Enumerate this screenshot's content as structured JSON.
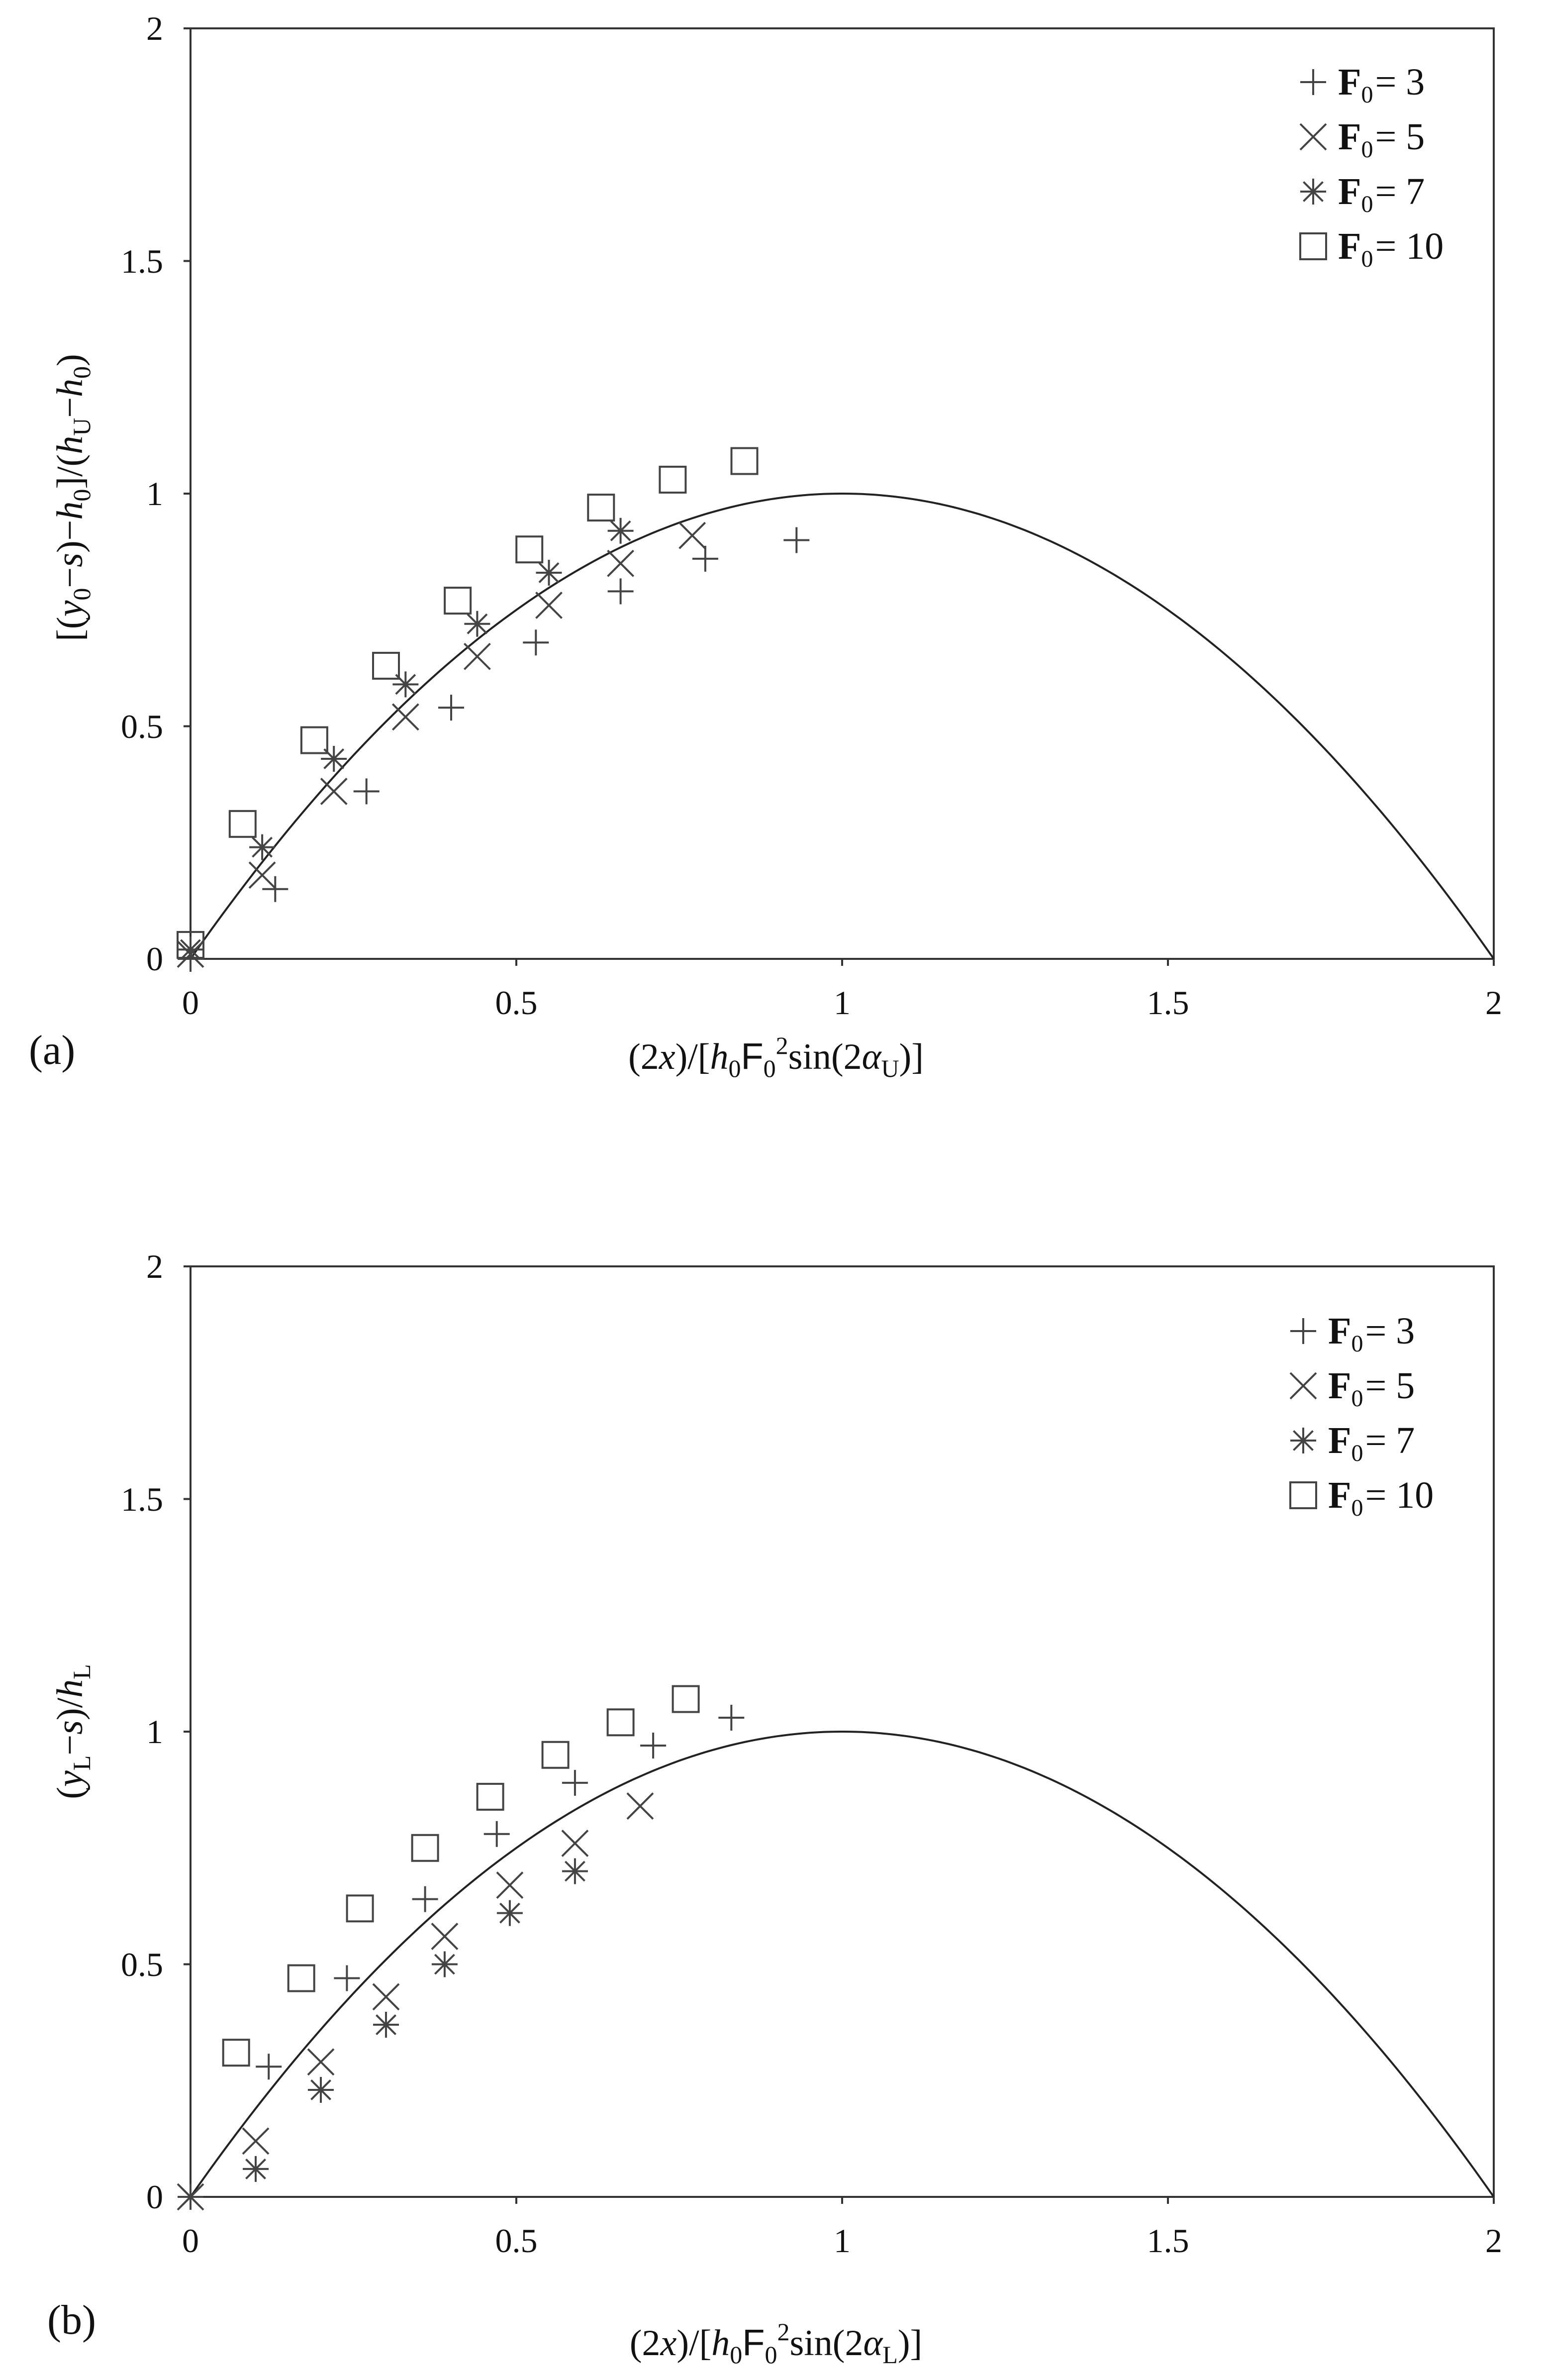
{
  "chart_data": [
    {
      "type": "scatter",
      "panel_label": "(a)",
      "xlim": [
        0,
        2
      ],
      "ylim": [
        0,
        2
      ],
      "xticks": [
        "0",
        "0.5",
        "1",
        "1.5",
        "2"
      ],
      "yticks": [
        "0",
        "0.5",
        "1",
        "1.5",
        "2"
      ],
      "xlabel": {
        "pre": "(2",
        "v1": "x",
        "mid1": ")/[",
        "v2": "h",
        "sub1": "0",
        "mid2": "F",
        "sub2": "0",
        "sup": "2",
        "mid3": "sin(2",
        "greek": "α",
        "sub3": "U",
        "post": ")]"
      },
      "ylabel": {
        "p1": "[(",
        "v1": "y",
        "s1": "0",
        "p2": "−",
        "v2": "s",
        "p3": ")−",
        "v3": "h",
        "s3": "0",
        "p4": "]/(",
        "v4": "h",
        "s4": "U",
        "p5": "−",
        "v5": "h",
        "s5": "0",
        "p6": ")"
      },
      "theory_curve": "y = 2x − x²",
      "legend": {
        "position": "top-right",
        "entries": [
          {
            "symbol": "plus",
            "bold": "F",
            "sub": "0",
            "text": "= 3"
          },
          {
            "symbol": "cross",
            "bold": "F",
            "sub": "0",
            "text": "= 5"
          },
          {
            "symbol": "asterisk",
            "bold": "F",
            "sub": "0",
            "text": "= 7"
          },
          {
            "symbol": "square",
            "bold": "F",
            "sub": "0",
            "text": "= 10"
          }
        ]
      },
      "series": [
        {
          "name": "F0 = 3",
          "symbol": "plus",
          "x": [
            0.0,
            0.13,
            0.27,
            0.4,
            0.53,
            0.66,
            0.79,
            0.93
          ],
          "y": [
            0.0,
            0.15,
            0.36,
            0.54,
            0.68,
            0.79,
            0.86,
            0.9
          ]
        },
        {
          "name": "F0 = 5",
          "symbol": "cross",
          "x": [
            0.0,
            0.11,
            0.22,
            0.33,
            0.44,
            0.55,
            0.66,
            0.77
          ],
          "y": [
            0.01,
            0.18,
            0.36,
            0.52,
            0.65,
            0.76,
            0.85,
            0.91
          ]
        },
        {
          "name": "F0 = 7",
          "symbol": "asterisk",
          "x": [
            0.0,
            0.11,
            0.22,
            0.33,
            0.44,
            0.55,
            0.66
          ],
          "y": [
            0.02,
            0.24,
            0.43,
            0.59,
            0.72,
            0.83,
            0.92
          ]
        },
        {
          "name": "F0 = 10",
          "symbol": "square",
          "x": [
            0.0,
            0.08,
            0.19,
            0.3,
            0.41,
            0.52,
            0.63,
            0.74,
            0.85
          ],
          "y": [
            0.03,
            0.29,
            0.47,
            0.63,
            0.77,
            0.88,
            0.97,
            1.03,
            1.07
          ]
        }
      ]
    },
    {
      "type": "scatter",
      "panel_label": "(b)",
      "xlim": [
        0,
        2
      ],
      "ylim": [
        0,
        2
      ],
      "xticks": [
        "0",
        "0.5",
        "1",
        "1.5",
        "2"
      ],
      "yticks": [
        "0",
        "0.5",
        "1",
        "1.5",
        "2"
      ],
      "xlabel": {
        "pre": "(2",
        "v1": "x",
        "mid1": ")/[",
        "v2": "h",
        "sub1": "0",
        "mid2": "F",
        "sub2": "0",
        "sup": "2",
        "mid3": "sin(2",
        "greek": "α",
        "sub3": "L",
        "post": ")]"
      },
      "ylabel": {
        "p1": "(",
        "v1": "y",
        "s1": "L",
        "p2": "−",
        "v2": "s",
        "p3": ")/",
        "v3": "h",
        "s3": "L"
      },
      "theory_curve": "y = 2x − x²",
      "legend": {
        "position": "top-right",
        "entries": [
          {
            "symbol": "plus",
            "bold": "F",
            "sub": "0",
            "text": "= 3"
          },
          {
            "symbol": "cross",
            "bold": "F",
            "sub": "0",
            "text": "= 5"
          },
          {
            "symbol": "asterisk",
            "bold": "F",
            "sub": "0",
            "text": "= 7"
          },
          {
            "symbol": "square",
            "bold": "F",
            "sub": "0",
            "text": "= 10"
          }
        ]
      },
      "series": [
        {
          "name": "F0 = 3",
          "symbol": "plus",
          "x": [
            0.0,
            0.12,
            0.24,
            0.36,
            0.47,
            0.59,
            0.71,
            0.83
          ],
          "y": [
            0.0,
            0.28,
            0.47,
            0.64,
            0.78,
            0.89,
            0.97,
            1.03
          ]
        },
        {
          "name": "F0 = 5",
          "symbol": "cross",
          "x": [
            0.0,
            0.1,
            0.2,
            0.3,
            0.39,
            0.49,
            0.59,
            0.69
          ],
          "y": [
            0.0,
            0.12,
            0.29,
            0.43,
            0.56,
            0.67,
            0.76,
            0.84
          ]
        },
        {
          "name": "F0 = 7",
          "symbol": "asterisk",
          "x": [
            0.0,
            0.1,
            0.2,
            0.3,
            0.39,
            0.49,
            0.59
          ],
          "y": [
            0.0,
            0.06,
            0.23,
            0.37,
            0.5,
            0.61,
            0.7
          ]
        },
        {
          "name": "F0 = 10",
          "symbol": "square",
          "x": [
            0.07,
            0.17,
            0.26,
            0.36,
            0.46,
            0.56,
            0.66,
            0.76
          ],
          "y": [
            0.31,
            0.47,
            0.62,
            0.75,
            0.86,
            0.95,
            1.02,
            1.07
          ]
        }
      ]
    }
  ]
}
